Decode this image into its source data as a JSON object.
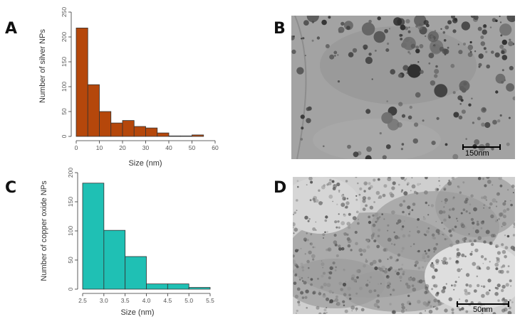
{
  "panels": {
    "a": {
      "letter": "A"
    },
    "b": {
      "letter": "B",
      "scale_text": "150nm"
    },
    "c": {
      "letter": "C"
    },
    "d": {
      "letter": "D",
      "scale_text": "50nm"
    }
  },
  "colors": {
    "silver_bar": "#b5470b",
    "copper_bar": "#1fc0b4",
    "bar_stroke": "#333333"
  },
  "chart_data": [
    {
      "type": "bar",
      "xlabel": "Size (nm)",
      "ylabel": "Number of silver NPs",
      "xlim": [
        0,
        60
      ],
      "ylim": [
        0,
        250
      ],
      "x_ticks": [
        "0",
        "10",
        "20",
        "30",
        "40",
        "50",
        "60"
      ],
      "y_ticks": [
        "0",
        "50",
        "100",
        "150",
        "200",
        "250"
      ],
      "bin_width": 5,
      "bins": [
        {
          "start": 0,
          "value": 218
        },
        {
          "start": 5,
          "value": 104
        },
        {
          "start": 10,
          "value": 50
        },
        {
          "start": 15,
          "value": 27
        },
        {
          "start": 20,
          "value": 32
        },
        {
          "start": 25,
          "value": 20
        },
        {
          "start": 30,
          "value": 17
        },
        {
          "start": 35,
          "value": 7
        },
        {
          "start": 40,
          "value": 1
        },
        {
          "start": 45,
          "value": 1
        },
        {
          "start": 50,
          "value": 3
        }
      ]
    },
    {
      "type": "bar",
      "xlabel": "Size (nm)",
      "ylabel": "Number of copper oxide NPs",
      "xlim": [
        2.5,
        5.5
      ],
      "ylim": [
        0,
        200
      ],
      "x_ticks": [
        "2.5",
        "3.0",
        "3.5",
        "4.0",
        "4.5",
        "5.0",
        "5.5"
      ],
      "y_ticks": [
        "0",
        "50",
        "100",
        "150",
        "200"
      ],
      "bin_width": 0.5,
      "bins": [
        {
          "start": 2.5,
          "value": 182
        },
        {
          "start": 3.0,
          "value": 101
        },
        {
          "start": 3.5,
          "value": 56
        },
        {
          "start": 4.0,
          "value": 9
        },
        {
          "start": 4.5,
          "value": 9
        },
        {
          "start": 5.0,
          "value": 3
        }
      ]
    }
  ]
}
